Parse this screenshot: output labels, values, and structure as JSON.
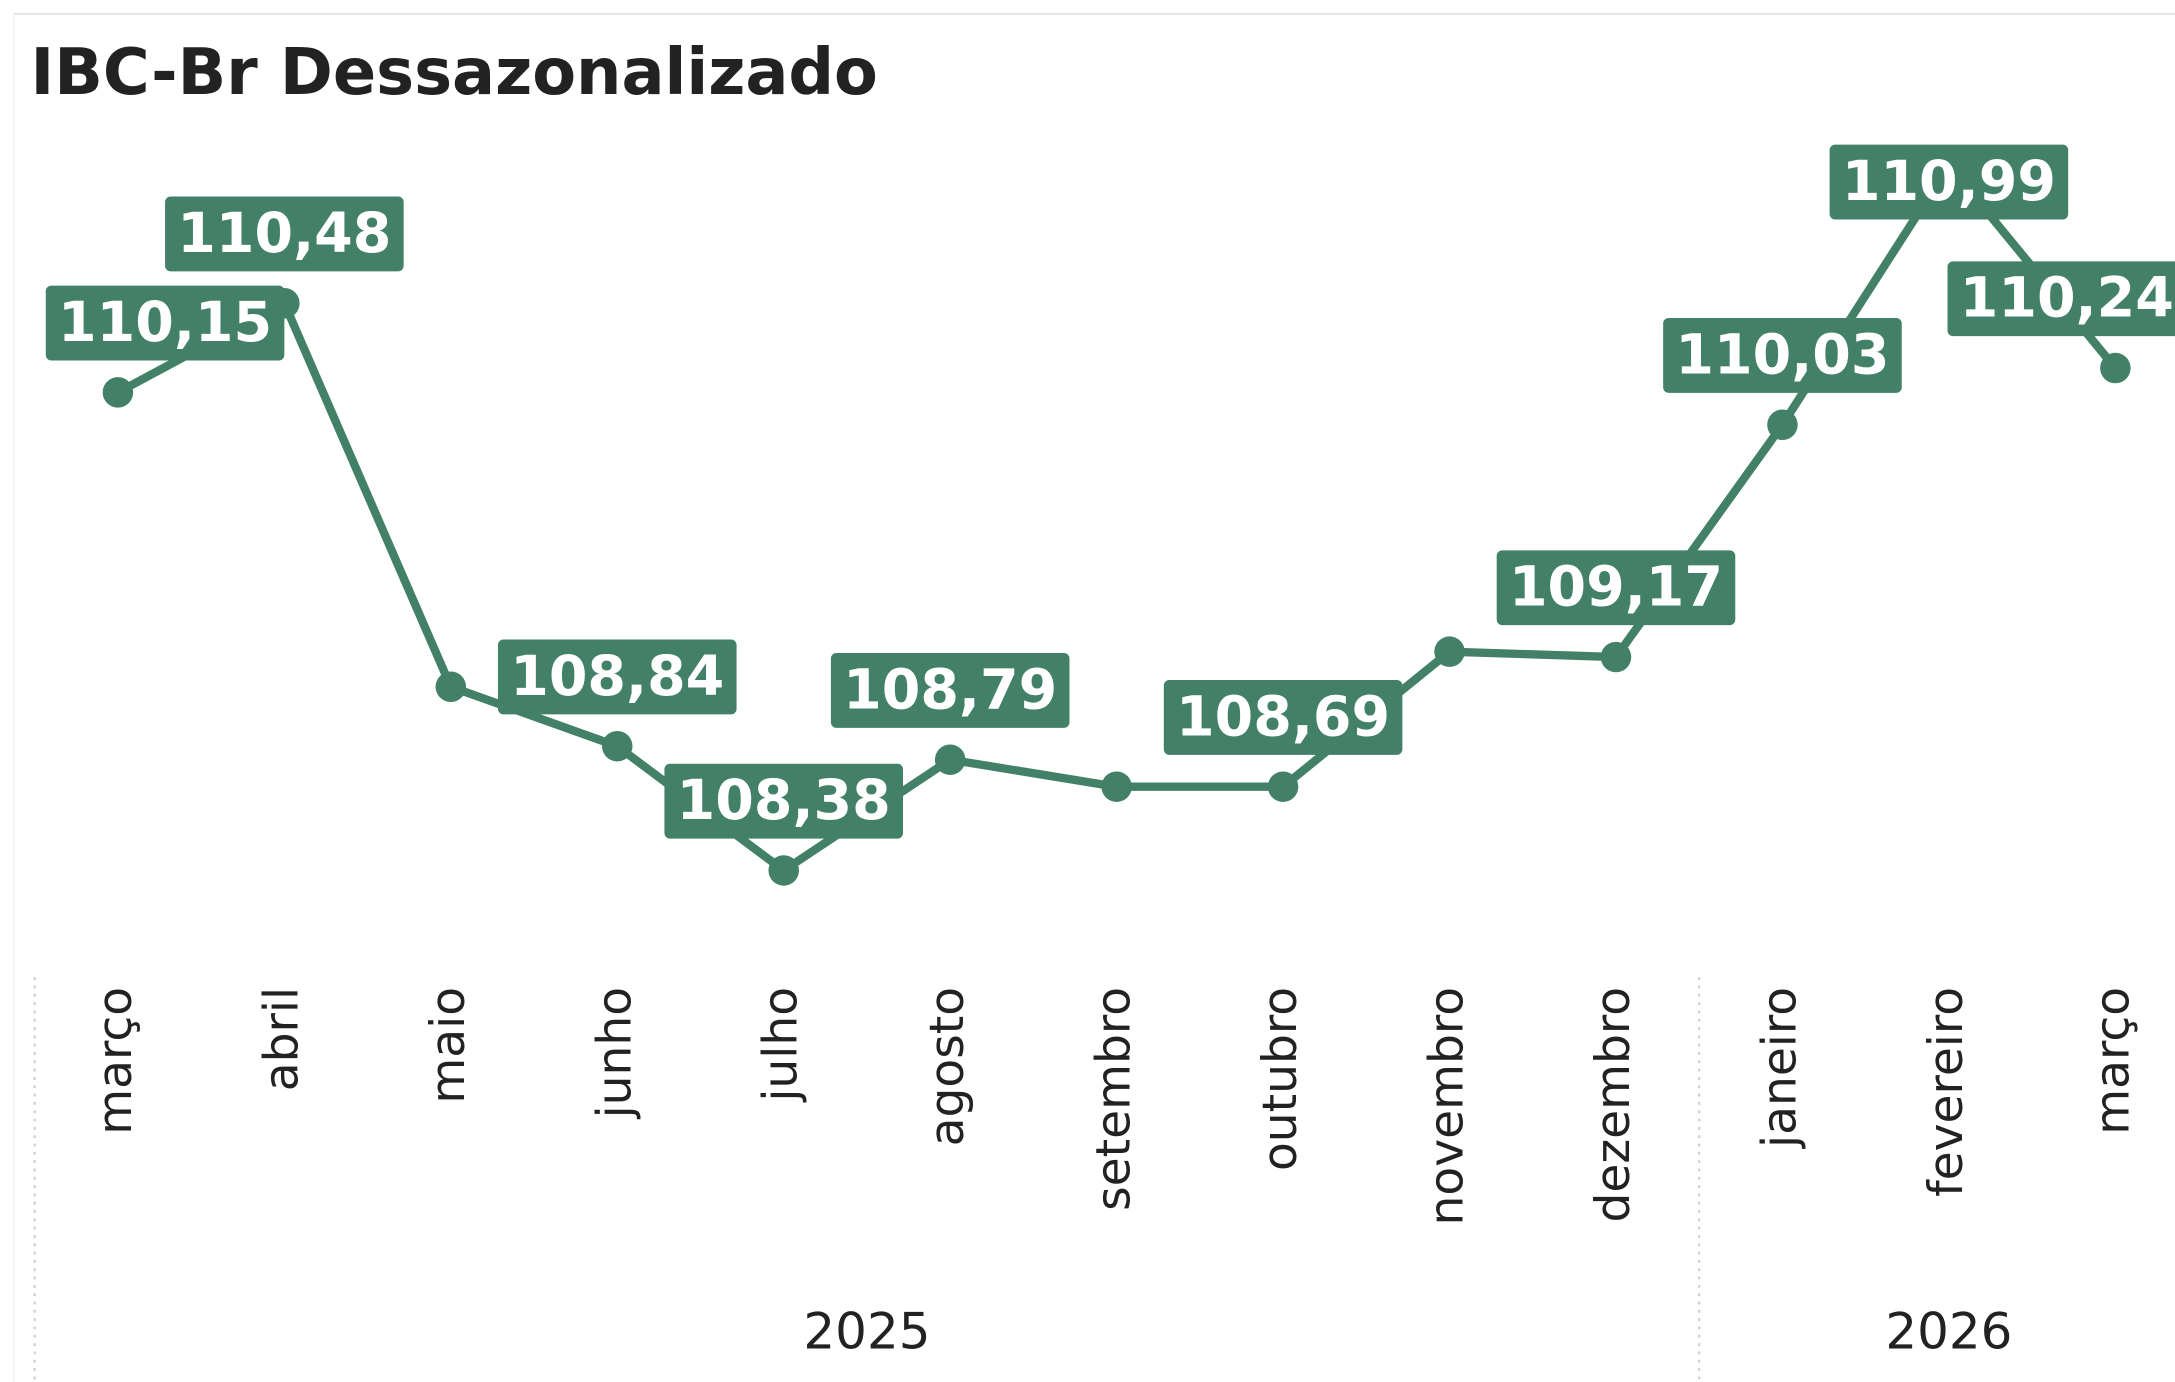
{
  "chart_data": {
    "type": "line",
    "title": "IBC-Br Dessazonalizado",
    "categories": [
      "março",
      "abril",
      "maio",
      "junho",
      "julho",
      "agosto",
      "setembro",
      "outubro",
      "novembro",
      "dezembro",
      "janeiro",
      "fevereiro",
      "março"
    ],
    "groups": [
      {
        "label": "2025",
        "span": 10
      },
      {
        "label": "2026",
        "span": 3
      }
    ],
    "values": [
      110.15,
      110.48,
      109.06,
      108.84,
      108.38,
      108.79,
      108.69,
      108.69,
      109.19,
      109.17,
      110.03,
      110.99,
      110.24
    ],
    "value_labels": [
      "110,15",
      "110,48",
      null,
      "108,84",
      "108,38",
      "108,79",
      null,
      "108,69",
      null,
      "109,17",
      "110,03",
      "110,99",
      "110,24"
    ],
    "color": "#428168",
    "ylim": [
      108,
      111.5
    ]
  }
}
